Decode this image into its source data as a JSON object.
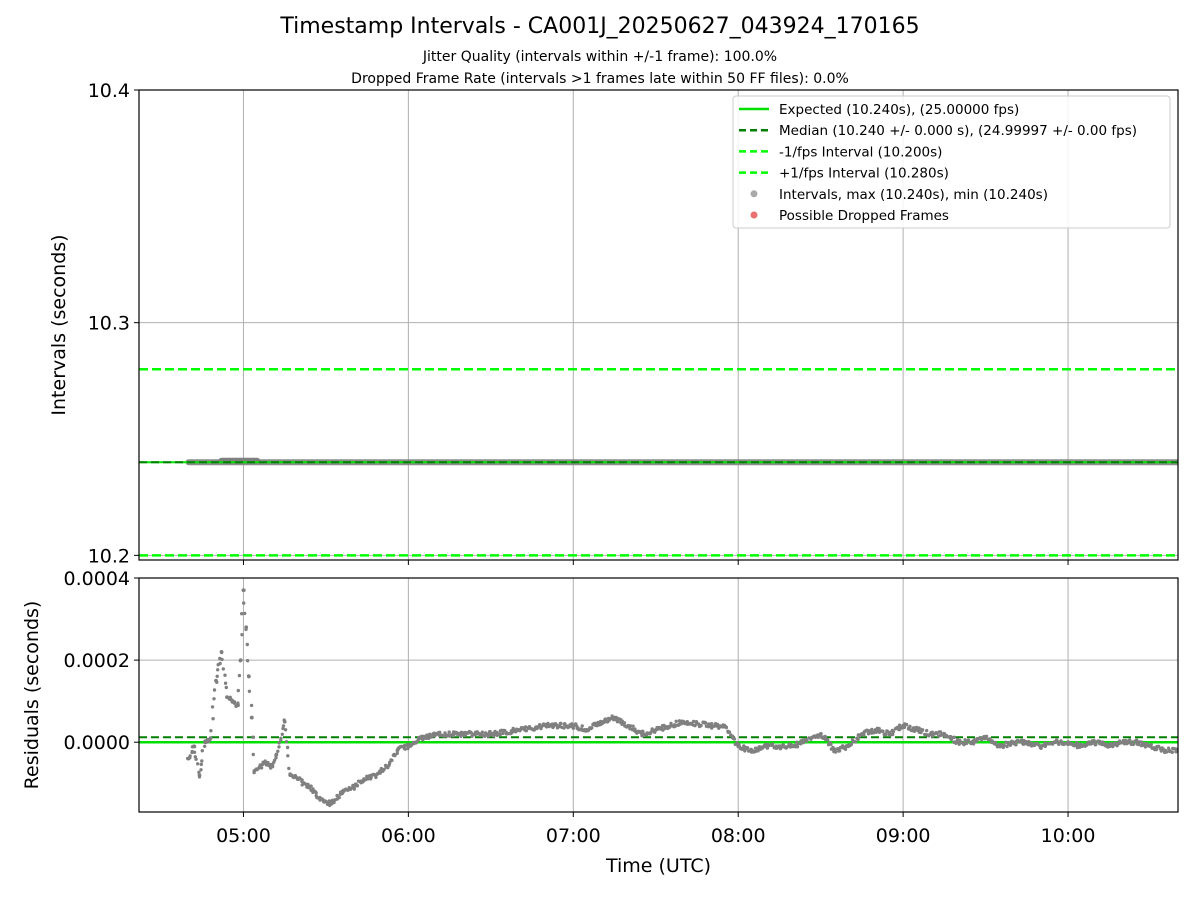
{
  "title": "Timestamp Intervals - CA001J_20250627_043924_170165",
  "subtitle_jitter": "Jitter Quality (intervals within +/-1 frame): 100.0%",
  "subtitle_dropped": "Dropped Frame Rate (intervals >1 frames late within 50 FF files): 0.0%",
  "colors": {
    "expected": "#00e000",
    "median": "#008000",
    "interval_bounds": "#00ff00",
    "points": "#808080",
    "dropped": "#e03030",
    "grid": "#b0b0b0"
  },
  "chart_data": [
    {
      "type": "scatter",
      "panel": "intervals",
      "ylabel": "Intervals (seconds)",
      "ylim": [
        10.198,
        10.4
      ],
      "yticks": [
        10.2,
        10.3,
        10.4
      ],
      "ytick_labels": [
        "10.2",
        "10.3",
        "10.4"
      ],
      "xlim": [
        "04:22",
        "10:40"
      ],
      "xticks": [
        "05:00",
        "06:00",
        "07:00",
        "08:00",
        "09:00",
        "10:00"
      ],
      "grid": true,
      "legend_position": "upper right",
      "legend": [
        {
          "label": "Expected (10.240s), (25.00000 fps)",
          "style": "solid",
          "color": "#00e000"
        },
        {
          "label": "Median (10.240 +/- 0.000 s), (24.99997 +/- 0.00 fps)",
          "style": "dashed",
          "color": "#008000"
        },
        {
          "label": "-1/fps Interval (10.200s)",
          "style": "dashed",
          "color": "#00ff00"
        },
        {
          "label": "+1/fps Interval (10.280s)",
          "style": "dashed",
          "color": "#00ff00"
        },
        {
          "label": "Intervals, max (10.240s), min (10.240s)",
          "style": "marker",
          "color": "#a0a0a0"
        },
        {
          "label": "Possible Dropped Frames",
          "style": "marker",
          "color": "#e86060"
        }
      ],
      "reference_lines": {
        "expected": 10.24,
        "median": 10.24,
        "minus_one_frame": 10.2,
        "plus_one_frame": 10.28
      },
      "intervals": {
        "x_start": "04:40",
        "x_end": "10:40",
        "value": 10.24
      }
    },
    {
      "type": "scatter",
      "panel": "residuals",
      "xlabel": "Time (UTC)",
      "ylabel": "Residuals (seconds)",
      "xlim": [
        "04:22",
        "10:40"
      ],
      "xticks": [
        "05:00",
        "06:00",
        "07:00",
        "08:00",
        "09:00",
        "10:00"
      ],
      "ylim": [
        -0.00017,
        0.0004
      ],
      "yticks": [
        0.0,
        0.0002,
        0.0004
      ],
      "ytick_labels": [
        "0.0000",
        "0.0002",
        "0.0004"
      ],
      "grid": true,
      "expected_residual": 0.0,
      "median_residual": 1.2e-05,
      "residuals": [
        [
          "04:40",
          -4e-05
        ],
        [
          "04:42",
          -1e-05
        ],
        [
          "04:44",
          -8e-05
        ],
        [
          "04:46",
          0.0
        ],
        [
          "04:48",
          1e-05
        ],
        [
          "04:50",
          0.00015
        ],
        [
          "04:52",
          0.00022
        ],
        [
          "04:54",
          0.00011
        ],
        [
          "04:56",
          0.0001
        ],
        [
          "04:58",
          9e-05
        ],
        [
          "04:59",
          0.0002
        ],
        [
          "05:00",
          0.00037
        ],
        [
          "05:01",
          0.00028
        ],
        [
          "05:02",
          0.00016
        ],
        [
          "05:03",
          6e-05
        ],
        [
          "05:04",
          -7e-05
        ],
        [
          "05:06",
          -6e-05
        ],
        [
          "05:08",
          -5e-05
        ],
        [
          "05:10",
          -6e-05
        ],
        [
          "05:12",
          -3e-05
        ],
        [
          "05:15",
          5e-05
        ],
        [
          "05:17",
          -8e-05
        ],
        [
          "05:20",
          -9e-05
        ],
        [
          "05:24",
          -0.00011
        ],
        [
          "05:28",
          -0.00014
        ],
        [
          "05:32",
          -0.00015
        ],
        [
          "05:36",
          -0.00012
        ],
        [
          "05:40",
          -0.00011
        ],
        [
          "05:44",
          -9e-05
        ],
        [
          "05:48",
          -8e-05
        ],
        [
          "05:52",
          -6e-05
        ],
        [
          "05:56",
          -2e-05
        ],
        [
          "06:00",
          -1e-05
        ],
        [
          "06:05",
          1e-05
        ],
        [
          "06:10",
          2e-05
        ],
        [
          "06:20",
          2e-05
        ],
        [
          "06:30",
          2e-05
        ],
        [
          "06:40",
          3e-05
        ],
        [
          "06:50",
          4e-05
        ],
        [
          "07:00",
          4e-05
        ],
        [
          "07:05",
          3e-05
        ],
        [
          "07:10",
          5e-05
        ],
        [
          "07:15",
          6e-05
        ],
        [
          "07:20",
          4e-05
        ],
        [
          "07:25",
          2e-05
        ],
        [
          "07:30",
          3e-05
        ],
        [
          "07:40",
          5e-05
        ],
        [
          "07:50",
          4e-05
        ],
        [
          "07:55",
          4e-05
        ],
        [
          "08:00",
          -1e-05
        ],
        [
          "08:05",
          -2e-05
        ],
        [
          "08:10",
          -1e-05
        ],
        [
          "08:20",
          -1e-05
        ],
        [
          "08:30",
          2e-05
        ],
        [
          "08:35",
          -2e-05
        ],
        [
          "08:40",
          -1e-05
        ],
        [
          "08:45",
          2e-05
        ],
        [
          "08:50",
          3e-05
        ],
        [
          "08:55",
          2e-05
        ],
        [
          "09:00",
          4e-05
        ],
        [
          "09:05",
          3e-05
        ],
        [
          "09:10",
          2e-05
        ],
        [
          "09:15",
          2e-05
        ],
        [
          "09:20",
          0.0
        ],
        [
          "09:25",
          0.0
        ],
        [
          "09:30",
          1e-05
        ],
        [
          "09:35",
          -1e-05
        ],
        [
          "09:40",
          0.0
        ],
        [
          "09:45",
          0.0
        ],
        [
          "09:50",
          -1e-05
        ],
        [
          "09:55",
          0.0
        ],
        [
          "10:00",
          0.0
        ],
        [
          "10:05",
          -1e-05
        ],
        [
          "10:10",
          0.0
        ],
        [
          "10:15",
          -1e-05
        ],
        [
          "10:20",
          0.0
        ],
        [
          "10:25",
          0.0
        ],
        [
          "10:30",
          -1e-05
        ],
        [
          "10:35",
          -2e-05
        ],
        [
          "10:40",
          -2e-05
        ]
      ]
    }
  ]
}
